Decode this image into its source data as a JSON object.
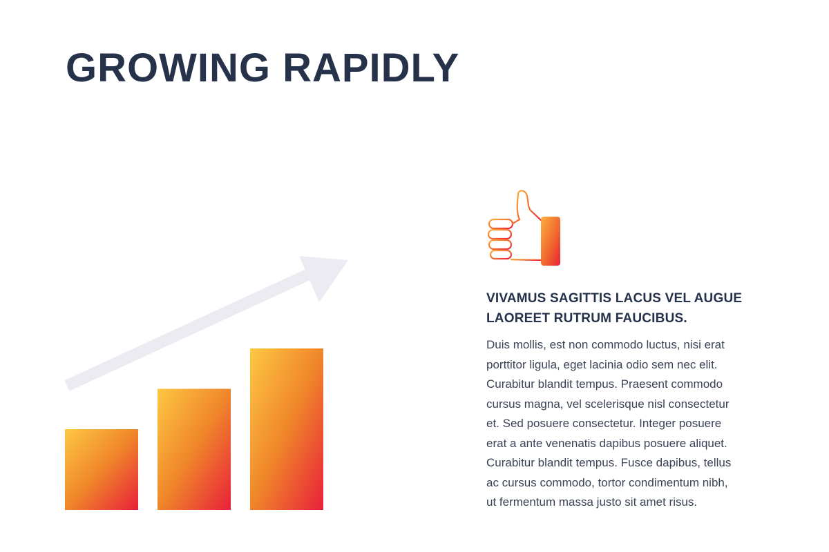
{
  "title": "GROWING RAPIDLY",
  "infographic": {
    "bar_levels": [
      1,
      1.5,
      2
    ],
    "bar_gradient": [
      "#fdc843",
      "#f0862a",
      "#e8203a"
    ],
    "arrow_color": "#ecebf1",
    "icon": "thumbs-up-icon"
  },
  "heading_lines": [
    "VIVAMUS SAGITTIS LACUS VEL AUGUE",
    "LAOREET RUTRUM FAUCIBUS."
  ],
  "body_lines": [
    "Duis mollis, est non commodo luctus, nisi erat",
    "porttitor ligula, eget lacinia odio sem nec elit.",
    "Curabitur blandit tempus. Praesent commodo",
    "cursus magna, vel scelerisque nisl consectetur",
    "et. Sed posuere consectetur. Integer posuere",
    "erat a ante venenatis dapibus posuere aliquet.",
    "Curabitur blandit tempus. Fusce dapibus, tellus",
    "ac cursus commodo, tortor condimentum nibh,",
    "ut fermentum massa justo sit amet risus."
  ]
}
